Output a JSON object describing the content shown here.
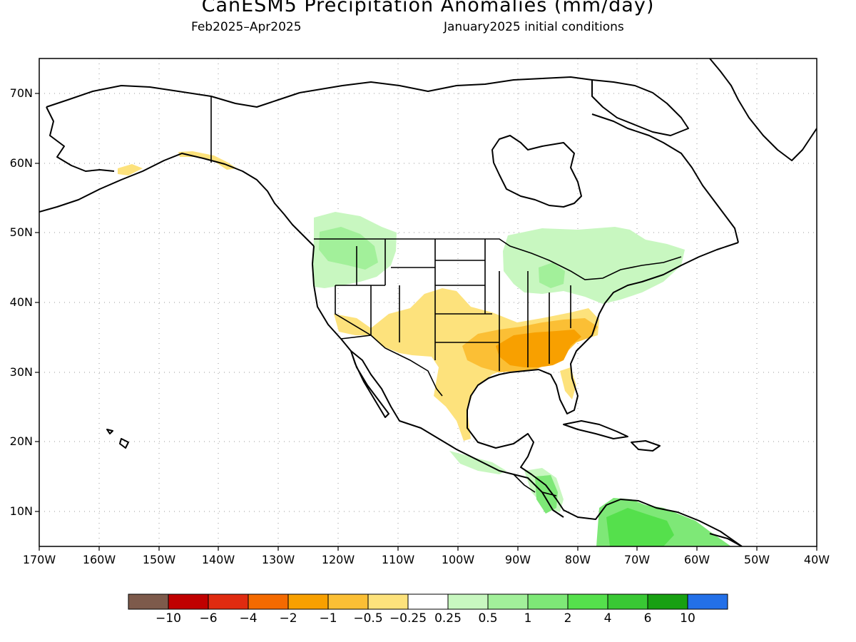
{
  "title": "CanESM5 Precipitation Anomalies (mm/day)",
  "period": "Feb2025–Apr2025",
  "initial_conditions": "January2025 initial conditions",
  "longitude_labels": [
    "170W",
    "160W",
    "150W",
    "140W",
    "130W",
    "120W",
    "110W",
    "100W",
    "90W",
    "80W",
    "70W",
    "60W",
    "50W",
    "40W"
  ],
  "latitude_labels": [
    "70N",
    "60N",
    "50N",
    "40N",
    "30N",
    "20N",
    "10N"
  ],
  "colorbar": {
    "colors": [
      "#7d5a4b",
      "#c00000",
      "#e02b10",
      "#f46a00",
      "#f8a000",
      "#fbbf35",
      "#fde27c",
      "#ffffff",
      "#c8f7c0",
      "#a2f09a",
      "#7ee877",
      "#55e04c",
      "#39c834",
      "#18a012",
      "#2370e8"
    ],
    "tick_labels": [
      "−10",
      "−6",
      "−4",
      "−2",
      "−1",
      "−0.5",
      "−0.25",
      "0.25",
      "0.5",
      "1",
      "2",
      "4",
      "6",
      "10"
    ]
  }
}
